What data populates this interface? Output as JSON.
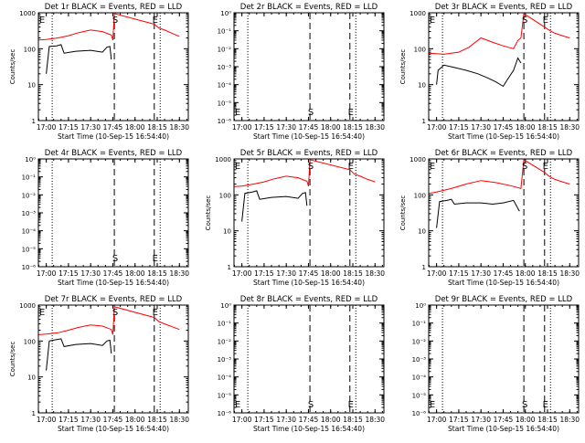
{
  "figure": {
    "x_tick_labels": [
      "17:00",
      "17:15",
      "17:30",
      "17:45",
      "18:00",
      "18:15",
      "18:30"
    ],
    "x_label": "Start Time (10-Sep-15 16:54:40)",
    "y_label": "Counts/sec",
    "log_tick_labels": [
      "1",
      "10",
      "100",
      "1000"
    ],
    "blank_tick_labels": [
      "10⁰",
      "10⁻¹",
      "10⁻²",
      "10⁻³",
      "10⁻⁴",
      "10⁻⁵",
      "10⁻⁶"
    ],
    "markers": {
      "start": "E",
      "saa": "S",
      "end": "E",
      "flare": "F"
    },
    "colors": {
      "events": "#000000",
      "lld": "#ff0000"
    }
  },
  "chart_data": [
    {
      "type": "line",
      "title": "Det 1r BLACK = Events, RED = LLD",
      "yscale": "log",
      "ylim": [
        1,
        1000
      ],
      "xlim": [
        "16:54:40",
        "18:36:00"
      ],
      "dotted_x": [
        "17:04",
        "18:17"
      ],
      "dashed_x": [
        "17:46",
        "18:13"
      ],
      "marker_labels": [
        {
          "key": "start",
          "x": "16:55"
        },
        {
          "key": "saa",
          "x": "17:46"
        },
        {
          "key": "end",
          "x": "18:13"
        }
      ],
      "series": [
        {
          "name": "LLD",
          "color": "red",
          "x": [
            "16:55",
            "17:00",
            "17:08",
            "17:15",
            "17:22",
            "17:30",
            "17:38",
            "17:44",
            "17:45",
            "17:46",
            "18:13",
            "18:16",
            "18:20",
            "18:25",
            "18:30"
          ],
          "y": [
            175,
            180,
            200,
            230,
            280,
            330,
            300,
            240,
            175,
            950,
            480,
            380,
            330,
            270,
            220
          ]
        },
        {
          "name": "Events",
          "color": "black",
          "x": [
            "17:00",
            "17:02",
            "17:07",
            "17:10",
            "17:12",
            "17:20",
            "17:30",
            "17:38",
            "17:41",
            "17:43",
            "17:44"
          ],
          "y": [
            20,
            115,
            120,
            130,
            75,
            85,
            90,
            80,
            110,
            115,
            50
          ]
        }
      ]
    },
    {
      "type": "line",
      "title": "Det 2r BLACK = Events, RED = LLD",
      "yscale": "log",
      "ylim": [
        1e-06,
        1
      ],
      "xlim": [
        "16:54:40",
        "18:36:00"
      ],
      "dotted_x": [
        "17:04",
        "18:17"
      ],
      "dashed_x": [
        "17:46",
        "18:13"
      ],
      "marker_labels": [
        {
          "key": "start",
          "x": "16:55"
        },
        {
          "key": "saa",
          "x": "17:46"
        },
        {
          "key": "end",
          "x": "18:13"
        }
      ],
      "series": []
    },
    {
      "type": "line",
      "title": "Det 3r BLACK = Events, RED = LLD",
      "yscale": "log",
      "ylim": [
        1,
        1000
      ],
      "xlim": [
        "16:54:40",
        "18:36:00"
      ],
      "dotted_x": [
        "17:04",
        "18:17"
      ],
      "dashed_x": [
        "17:59",
        "18:13"
      ],
      "marker_labels": [
        {
          "key": "start",
          "x": "16:55"
        },
        {
          "key": "saa",
          "x": "17:59"
        },
        {
          "key": "end",
          "x": "18:13"
        }
      ],
      "series": [
        {
          "name": "LLD",
          "color": "red",
          "x": [
            "16:55",
            "17:05",
            "17:15",
            "17:22",
            "17:30",
            "17:38",
            "17:45",
            "17:52",
            "17:55",
            "17:57",
            "17:59",
            "18:13",
            "18:16",
            "18:20",
            "18:25",
            "18:30"
          ],
          "y": [
            75,
            70,
            80,
            110,
            200,
            150,
            120,
            100,
            170,
            200,
            950,
            400,
            330,
            270,
            230,
            200
          ]
        },
        {
          "name": "Events",
          "color": "black",
          "x": [
            "17:00",
            "17:01",
            "17:05",
            "17:12",
            "17:20",
            "17:28",
            "17:35",
            "17:40",
            "17:45",
            "17:48",
            "17:52",
            "17:55",
            "17:57"
          ],
          "y": [
            10,
            25,
            35,
            30,
            25,
            20,
            15,
            12,
            9,
            14,
            25,
            55,
            40
          ]
        }
      ]
    },
    {
      "type": "line",
      "title": "Det 4r BLACK = Events, RED = LLD",
      "yscale": "log",
      "ylim": [
        1e-06,
        1
      ],
      "xlim": [
        "16:54:40",
        "18:36:00"
      ],
      "dotted_x": [
        "17:04",
        "18:17"
      ],
      "dashed_x": [
        "17:46",
        "18:13"
      ],
      "marker_labels": [
        {
          "key": "saa",
          "x": "17:46"
        },
        {
          "key": "end",
          "x": "18:13"
        }
      ],
      "series": []
    },
    {
      "type": "line",
      "title": "Det 5r BLACK = Events, RED = LLD",
      "yscale": "log",
      "ylim": [
        1,
        1000
      ],
      "xlim": [
        "16:54:40",
        "18:36:00"
      ],
      "dotted_x": [
        "17:04",
        "18:17"
      ],
      "dashed_x": [
        "17:46",
        "18:13"
      ],
      "marker_labels": [
        {
          "key": "start",
          "x": "16:55"
        },
        {
          "key": "saa",
          "x": "17:46"
        },
        {
          "key": "end",
          "x": "18:13"
        }
      ],
      "series": [
        {
          "name": "LLD",
          "color": "red",
          "x": [
            "16:55",
            "17:00",
            "17:08",
            "17:15",
            "17:22",
            "17:30",
            "17:38",
            "17:44",
            "17:45",
            "17:46",
            "18:13",
            "18:16",
            "18:20",
            "18:25",
            "18:30"
          ],
          "y": [
            170,
            175,
            200,
            230,
            280,
            330,
            300,
            240,
            175,
            950,
            500,
            380,
            330,
            270,
            230
          ]
        },
        {
          "name": "Events",
          "color": "black",
          "x": [
            "17:00",
            "17:02",
            "17:07",
            "17:10",
            "17:12",
            "17:20",
            "17:30",
            "17:38",
            "17:41",
            "17:43",
            "17:44"
          ],
          "y": [
            18,
            110,
            120,
            130,
            75,
            85,
            90,
            80,
            110,
            115,
            50
          ]
        }
      ]
    },
    {
      "type": "line",
      "title": "Det 6r BLACK = Events, RED = LLD",
      "yscale": "log",
      "ylim": [
        1,
        1000
      ],
      "xlim": [
        "16:54:40",
        "18:36:00"
      ],
      "dotted_x": [
        "17:04",
        "18:17"
      ],
      "dashed_x": [
        "17:59",
        "18:13"
      ],
      "marker_labels": [
        {
          "key": "start",
          "x": "16:55"
        },
        {
          "key": "saa",
          "x": "17:59"
        },
        {
          "key": "end",
          "x": "18:13"
        }
      ],
      "series": [
        {
          "name": "LLD",
          "color": "red",
          "x": [
            "16:55",
            "17:00",
            "17:10",
            "17:20",
            "17:30",
            "17:40",
            "17:50",
            "17:57",
            "17:59",
            "18:13",
            "18:16",
            "18:20",
            "18:25",
            "18:30"
          ],
          "y": [
            110,
            120,
            150,
            200,
            250,
            220,
            180,
            150,
            950,
            420,
            330,
            270,
            230,
            200
          ]
        },
        {
          "name": "Events",
          "color": "black",
          "x": [
            "17:00",
            "17:02",
            "17:07",
            "17:10",
            "17:12",
            "17:20",
            "17:30",
            "17:38",
            "17:45",
            "17:52",
            "17:56"
          ],
          "y": [
            12,
            65,
            70,
            75,
            55,
            60,
            60,
            55,
            60,
            70,
            35
          ]
        }
      ]
    },
    {
      "type": "line",
      "title": "Det 7r BLACK = Events, RED = LLD",
      "yscale": "log",
      "ylim": [
        1,
        1000
      ],
      "xlim": [
        "16:54:40",
        "18:36:00"
      ],
      "dotted_x": [
        "17:04",
        "18:17"
      ],
      "dashed_x": [
        "17:46",
        "18:13"
      ],
      "marker_labels": [
        {
          "key": "start",
          "x": "16:55"
        },
        {
          "key": "saa",
          "x": "17:46"
        },
        {
          "key": "end",
          "x": "18:13"
        }
      ],
      "series": [
        {
          "name": "LLD",
          "color": "red",
          "x": [
            "16:55",
            "17:00",
            "17:08",
            "17:15",
            "17:22",
            "17:30",
            "17:38",
            "17:44",
            "17:45",
            "17:46",
            "18:13",
            "18:16",
            "18:20",
            "18:25",
            "18:30"
          ],
          "y": [
            150,
            155,
            170,
            200,
            240,
            280,
            260,
            210,
            150,
            900,
            450,
            350,
            300,
            250,
            210
          ]
        },
        {
          "name": "Events",
          "color": "black",
          "x": [
            "17:00",
            "17:02",
            "17:07",
            "17:10",
            "17:12",
            "17:20",
            "17:30",
            "17:38",
            "17:41",
            "17:43",
            "17:44"
          ],
          "y": [
            15,
            100,
            110,
            115,
            70,
            80,
            85,
            75,
            100,
            105,
            45
          ]
        }
      ]
    },
    {
      "type": "line",
      "title": "Det 8r BLACK = Events, RED = LLD",
      "yscale": "log",
      "ylim": [
        1e-06,
        1
      ],
      "xlim": [
        "16:54:40",
        "18:36:00"
      ],
      "dotted_x": [
        "17:04",
        "18:17"
      ],
      "dashed_x": [
        "17:46",
        "18:13"
      ],
      "marker_labels": [
        {
          "key": "start",
          "x": "16:55"
        },
        {
          "key": "saa",
          "x": "17:46"
        },
        {
          "key": "end",
          "x": "18:13"
        }
      ],
      "series": []
    },
    {
      "type": "line",
      "title": "Det 9r BLACK = Events, RED = LLD",
      "yscale": "log",
      "ylim": [
        1e-06,
        1
      ],
      "xlim": [
        "16:54:40",
        "18:36:00"
      ],
      "dotted_x": [
        "17:04",
        "18:17"
      ],
      "dashed_x": [
        "17:59",
        "18:13"
      ],
      "marker_labels": [
        {
          "key": "start",
          "x": "16:55"
        },
        {
          "key": "saa",
          "x": "17:59"
        },
        {
          "key": "end",
          "x": "18:13"
        }
      ],
      "series": []
    }
  ]
}
